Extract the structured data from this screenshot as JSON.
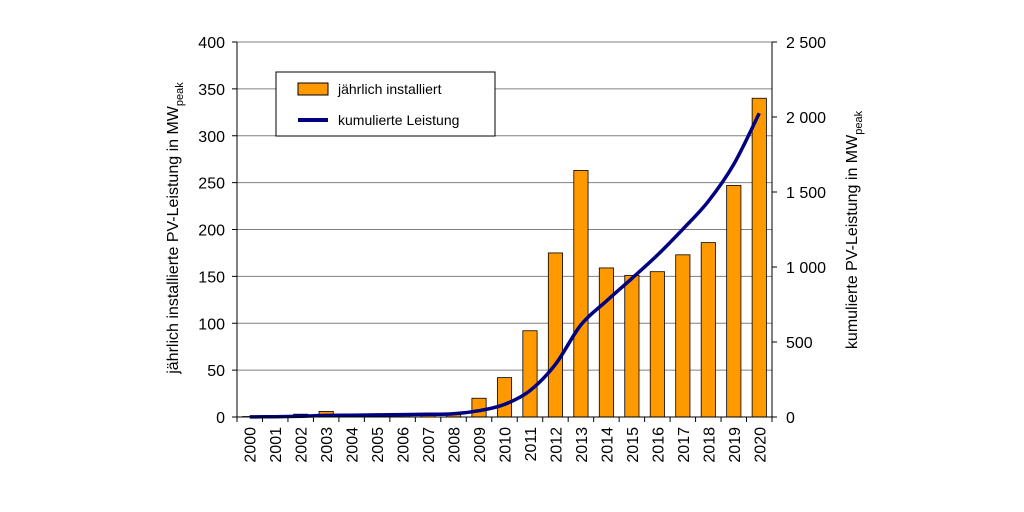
{
  "chart_data": {
    "type": "bar",
    "categories": [
      "2000",
      "2001",
      "2002",
      "2003",
      "2004",
      "2005",
      "2006",
      "2007",
      "2008",
      "2009",
      "2010",
      "2011",
      "2012",
      "2013",
      "2014",
      "2015",
      "2016",
      "2017",
      "2018",
      "2019",
      "2020"
    ],
    "ylabel_left": "jährlich installierte PV-Leistung in MW",
    "ylabel_left_sub": "peak",
    "ylabel_right": "kumulierte PV-Leistung in MW",
    "ylabel_right_sub": "peak",
    "ylim_left": [
      0,
      400
    ],
    "ylim_right": [
      0,
      2500
    ],
    "yticks_left": [
      "0",
      "50",
      "100",
      "150",
      "200",
      "250",
      "300",
      "350",
      "400"
    ],
    "yticks_right": [
      "0",
      "500",
      "1 000",
      "1 500",
      "2 000",
      "2 500"
    ],
    "grid": true,
    "legend_position": "top-left",
    "series": [
      {
        "name": "jährlich installiert",
        "type": "bar",
        "axis": "left",
        "color": "#FF9900",
        "values": [
          0.5,
          0.5,
          3,
          6,
          1,
          2,
          2,
          2,
          4,
          20,
          42,
          92,
          175,
          263,
          159,
          151,
          155,
          173,
          186,
          247,
          340
        ]
      },
      {
        "name": "kumulierte Leistung",
        "type": "line",
        "axis": "right",
        "color": "#000080",
        "values": [
          1,
          2,
          5,
          11,
          12,
          14,
          16,
          18,
          22,
          42,
          84,
          176,
          351,
          614,
          773,
          924,
          1079,
          1252,
          1438,
          1685,
          2025
        ]
      }
    ]
  }
}
